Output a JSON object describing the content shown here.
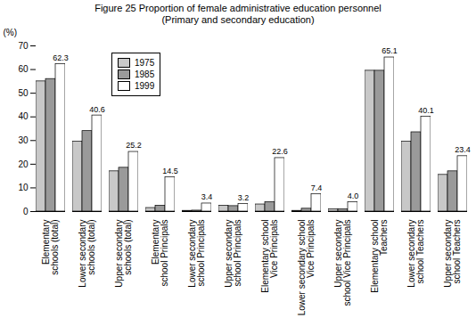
{
  "chart_data": {
    "type": "bar",
    "title": "Figure 25  Proportion of female administrative education personnel",
    "subtitle": "(Primary and secondary education)",
    "y_label": "(%)",
    "categories": [
      "Elementary\nschools (total)",
      "Lower secondary\nschools (total)",
      "Upper secondary\nschools (total)",
      "Elementary\nschool Principals",
      "Lower secondary\nschool Principals",
      "Upper secondary\nschool Principals",
      "Elementary school\nVice Principals",
      "Lower secondary school\nVice Principals",
      "Upper secondary\nschool Vice Principals",
      "Elementary school\nTeachers",
      "Lower secondary\nschool Teachers",
      "Upper secondary\nschool Teachers"
    ],
    "series": [
      {
        "name": "1975",
        "color": "#c8c8c8",
        "values": [
          55,
          29.5,
          17,
          1.5,
          0.3,
          2.5,
          3,
          0.3,
          1,
          59.5,
          29.5,
          15.5
        ]
      },
      {
        "name": "1985",
        "color": "#9a9a9a",
        "values": [
          56,
          34,
          18.5,
          2.5,
          0.4,
          2.3,
          4,
          1.2,
          1,
          59.5,
          33.5,
          17
        ]
      },
      {
        "name": "1999",
        "color": "#ffffff",
        "values": [
          62.3,
          40.6,
          25.2,
          14.5,
          3.4,
          3.2,
          22.6,
          7.4,
          4.0,
          65.1,
          40.1,
          23.4
        ],
        "data_labels": true,
        "value_labels": [
          "62.3",
          "40.6",
          "25.2",
          "14.5",
          "3.4",
          "3.2",
          "22.6",
          "7.4",
          "4.0",
          "65.1",
          "40.1",
          "23.4"
        ]
      }
    ],
    "ylim": [
      0,
      70
    ],
    "yticks": [
      0,
      10,
      20,
      30,
      40,
      50,
      60,
      70
    ],
    "legend": "upper left",
    "grid": false
  }
}
